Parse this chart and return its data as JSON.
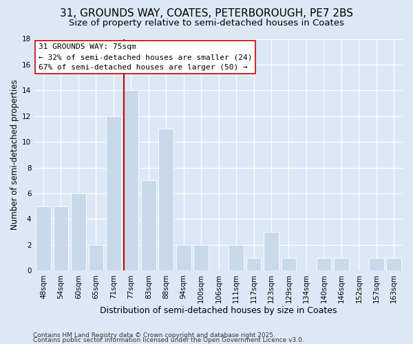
{
  "title": "31, GROUNDS WAY, COATES, PETERBOROUGH, PE7 2BS",
  "subtitle": "Size of property relative to semi-detached houses in Coates",
  "xlabel": "Distribution of semi-detached houses by size in Coates",
  "ylabel": "Number of semi-detached properties",
  "bar_labels": [
    "48sqm",
    "54sqm",
    "60sqm",
    "65sqm",
    "71sqm",
    "77sqm",
    "83sqm",
    "88sqm",
    "94sqm",
    "100sqm",
    "106sqm",
    "111sqm",
    "117sqm",
    "123sqm",
    "129sqm",
    "134sqm",
    "140sqm",
    "146sqm",
    "152sqm",
    "157sqm",
    "163sqm"
  ],
  "bar_values": [
    5,
    5,
    6,
    2,
    12,
    14,
    7,
    11,
    2,
    2,
    0,
    2,
    1,
    3,
    1,
    0,
    1,
    1,
    0,
    1,
    1
  ],
  "bar_color": "#c8daea",
  "vline_color": "#cc0000",
  "vline_index": 5,
  "ylim": [
    0,
    18
  ],
  "yticks": [
    0,
    2,
    4,
    6,
    8,
    10,
    12,
    14,
    16,
    18
  ],
  "annotation_title": "31 GROUNDS WAY: 75sqm",
  "annotation_line1": "← 32% of semi-detached houses are smaller (24)",
  "annotation_line2": "67% of semi-detached houses are larger (50) →",
  "annotation_box_color": "#cc0000",
  "footer_line1": "Contains HM Land Registry data © Crown copyright and database right 2025.",
  "footer_line2": "Contains public sector information licensed under the Open Government Licence v3.0.",
  "background_color": "#dce8f5",
  "plot_bg_color": "#dce8f5",
  "grid_color": "#ffffff",
  "title_fontsize": 11,
  "subtitle_fontsize": 9.5,
  "xlabel_fontsize": 9,
  "ylabel_fontsize": 8.5,
  "tick_fontsize": 7.5,
  "annotation_fontsize": 8,
  "footer_fontsize": 6.5
}
